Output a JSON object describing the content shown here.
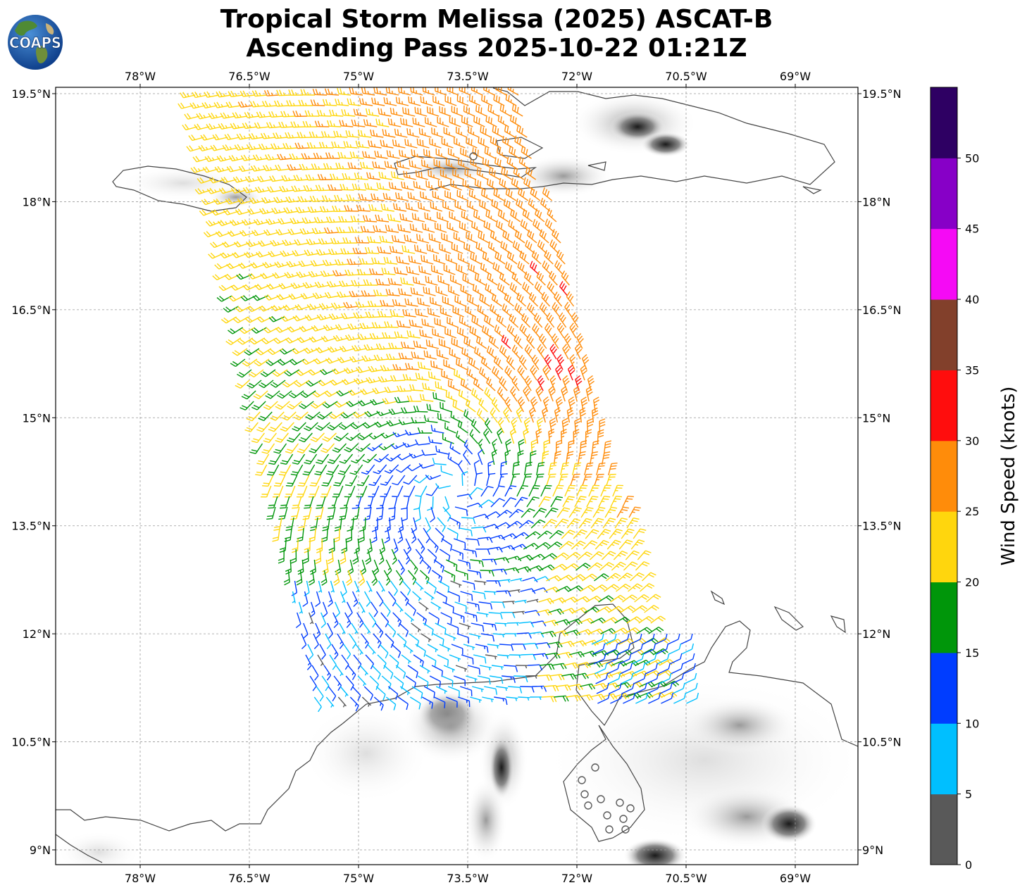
{
  "title": {
    "line1": "Tropical Storm Melissa (2025) ASCAT-B",
    "line2": "Ascending Pass 2025-10-22 01:21Z"
  },
  "logo": {
    "text": "COAPS",
    "icon": "globe-logo-icon"
  },
  "map": {
    "lon_labels": [
      "78°W",
      "76.5°W",
      "75°W",
      "73.5°W",
      "72°W",
      "70.5°W",
      "69°W"
    ],
    "lon_values": [
      -78,
      -76.5,
      -75,
      -73.5,
      -72,
      -70.5,
      -69
    ],
    "lat_labels": [
      "19.5°N",
      "18°N",
      "16.5°N",
      "15°N",
      "13.5°N",
      "12°N",
      "10.5°N",
      "9°N"
    ],
    "lat_values": [
      19.5,
      18,
      16.5,
      15,
      13.5,
      12,
      10.5,
      9
    ],
    "lon_range": [
      -79.17,
      -68.0
    ],
    "lat_range": [
      8.8,
      19.6
    ],
    "storm_center": {
      "lon": -73.7,
      "lat": 14.0
    },
    "gridlines": true
  },
  "colorbar": {
    "title": "Wind Speed (knots)",
    "tick_labels": [
      "0",
      "5",
      "10",
      "15",
      "20",
      "25",
      "30",
      "35",
      "40",
      "45",
      "50"
    ],
    "bounds": [
      0,
      5,
      10,
      15,
      20,
      25,
      30,
      35,
      40,
      45,
      50,
      55
    ],
    "colors": [
      "#595959",
      "#00bfff",
      "#003dff",
      "#00960a",
      "#ffd60d",
      "#ff8c0a",
      "#ff0d0d",
      "#82402b",
      "#f50af5",
      "#8700c7",
      "#2e0063"
    ]
  }
}
